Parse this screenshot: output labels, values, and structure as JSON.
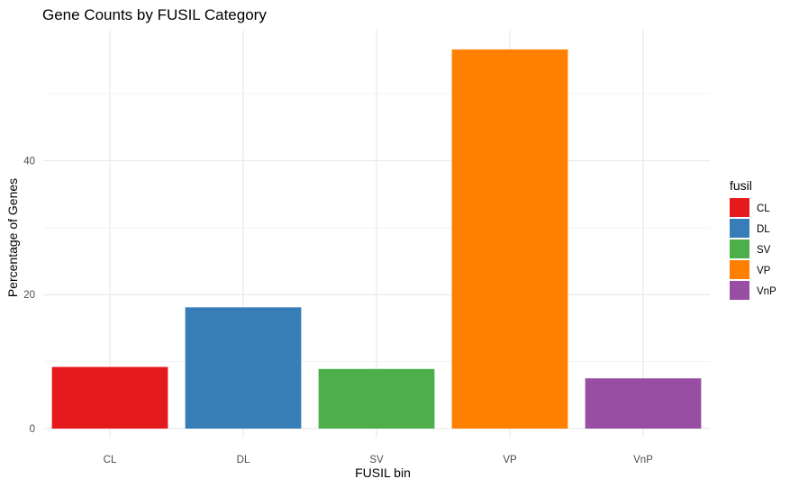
{
  "chart_data": {
    "type": "bar",
    "title": "Gene Counts by FUSIL Category",
    "xlabel": "FUSIL bin",
    "ylabel": "Percentage of Genes",
    "categories": [
      "CL",
      "DL",
      "SV",
      "VP",
      "VnP"
    ],
    "values": [
      9.2,
      18.1,
      8.9,
      56.6,
      7.5
    ],
    "colors": [
      "#E41A1C",
      "#377EB8",
      "#4DAF4A",
      "#FF7F00",
      "#984EA3"
    ],
    "ylim": [
      0,
      59.5
    ],
    "yticks": [
      0,
      20,
      40
    ],
    "grid": true,
    "legend": {
      "title": "fusil",
      "position": "right",
      "labels": [
        "CL",
        "DL",
        "SV",
        "VP",
        "VnP"
      ]
    }
  }
}
